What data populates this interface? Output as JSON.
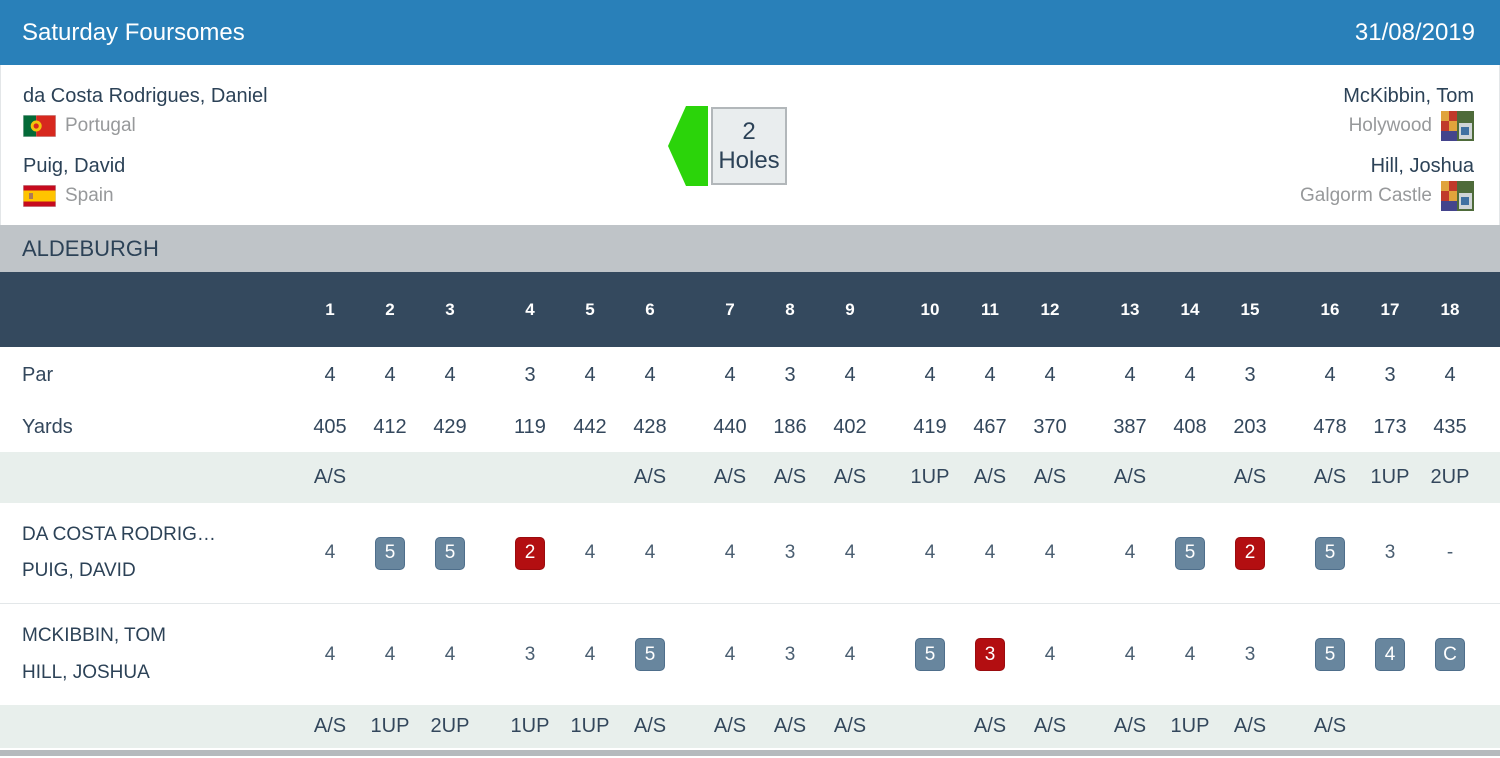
{
  "header": {
    "title": "Saturday Foursomes",
    "date": "31/08/2019"
  },
  "match": {
    "team1": {
      "players": [
        {
          "name": "da Costa Rodrigues, Daniel",
          "club": "Portugal",
          "flag": "portugal"
        },
        {
          "name": "Puig, David",
          "club": "Spain",
          "flag": "spain"
        }
      ]
    },
    "team2": {
      "players": [
        {
          "name": "McKibbin, Tom",
          "club": "Holywood"
        },
        {
          "name": "Hill, Joshua",
          "club": "Galgorm Castle"
        }
      ]
    },
    "result": {
      "value": "2",
      "label": "Holes",
      "arrow_direction": "left"
    }
  },
  "course": {
    "name": "ALDEBURGH"
  },
  "scorecard": {
    "holes": [
      "1",
      "2",
      "3",
      "4",
      "5",
      "6",
      "7",
      "8",
      "9",
      "10",
      "11",
      "12",
      "13",
      "14",
      "15",
      "16",
      "17",
      "18"
    ],
    "par": {
      "label": "Par",
      "values": [
        "4",
        "4",
        "4",
        "3",
        "4",
        "4",
        "4",
        "3",
        "4",
        "4",
        "4",
        "4",
        "4",
        "4",
        "3",
        "4",
        "3",
        "4"
      ]
    },
    "yards": {
      "label": "Yards",
      "values": [
        "405",
        "412",
        "429",
        "119",
        "442",
        "428",
        "440",
        "186",
        "402",
        "419",
        "467",
        "370",
        "387",
        "408",
        "203",
        "478",
        "173",
        "435"
      ]
    },
    "status_top": {
      "values": [
        "A/S",
        "",
        "",
        "",
        "",
        "A/S",
        "A/S",
        "A/S",
        "A/S",
        "1UP",
        "A/S",
        "A/S",
        "A/S",
        "",
        "A/S",
        "A/S",
        "1UP",
        "2UP"
      ]
    },
    "team1": {
      "names": [
        "DA COSTA RODRIG…",
        "PUIG, DAVID"
      ],
      "scores": [
        {
          "v": "4",
          "s": ""
        },
        {
          "v": "5",
          "s": "blue"
        },
        {
          "v": "5",
          "s": "blue"
        },
        {
          "v": "2",
          "s": "red"
        },
        {
          "v": "4",
          "s": ""
        },
        {
          "v": "4",
          "s": ""
        },
        {
          "v": "4",
          "s": ""
        },
        {
          "v": "3",
          "s": ""
        },
        {
          "v": "4",
          "s": ""
        },
        {
          "v": "4",
          "s": ""
        },
        {
          "v": "4",
          "s": ""
        },
        {
          "v": "4",
          "s": ""
        },
        {
          "v": "4",
          "s": ""
        },
        {
          "v": "5",
          "s": "blue"
        },
        {
          "v": "2",
          "s": "red"
        },
        {
          "v": "5",
          "s": "blue"
        },
        {
          "v": "3",
          "s": ""
        },
        {
          "v": "-",
          "s": ""
        }
      ]
    },
    "team2": {
      "names": [
        "MCKIBBIN, TOM",
        "HILL, JOSHUA"
      ],
      "scores": [
        {
          "v": "4",
          "s": ""
        },
        {
          "v": "4",
          "s": ""
        },
        {
          "v": "4",
          "s": ""
        },
        {
          "v": "3",
          "s": ""
        },
        {
          "v": "4",
          "s": ""
        },
        {
          "v": "5",
          "s": "blue"
        },
        {
          "v": "4",
          "s": ""
        },
        {
          "v": "3",
          "s": ""
        },
        {
          "v": "4",
          "s": ""
        },
        {
          "v": "5",
          "s": "blue"
        },
        {
          "v": "3",
          "s": "red"
        },
        {
          "v": "4",
          "s": ""
        },
        {
          "v": "4",
          "s": ""
        },
        {
          "v": "4",
          "s": ""
        },
        {
          "v": "3",
          "s": ""
        },
        {
          "v": "5",
          "s": "blue"
        },
        {
          "v": "4",
          "s": "blue"
        },
        {
          "v": "C",
          "s": "blue"
        }
      ]
    },
    "status_bottom": {
      "values": [
        "A/S",
        "1UP",
        "2UP",
        "1UP",
        "1UP",
        "A/S",
        "A/S",
        "A/S",
        "A/S",
        "",
        "A/S",
        "A/S",
        "A/S",
        "1UP",
        "A/S",
        "A/S",
        "",
        ""
      ]
    }
  },
  "colors": {
    "header_blue": "#2980b9",
    "table_header_navy": "#34495e",
    "badge_blue": "#68869e",
    "badge_red": "#b30e11",
    "arrow_green": "#2bd40a",
    "status_row_bg": "#e8efec"
  }
}
